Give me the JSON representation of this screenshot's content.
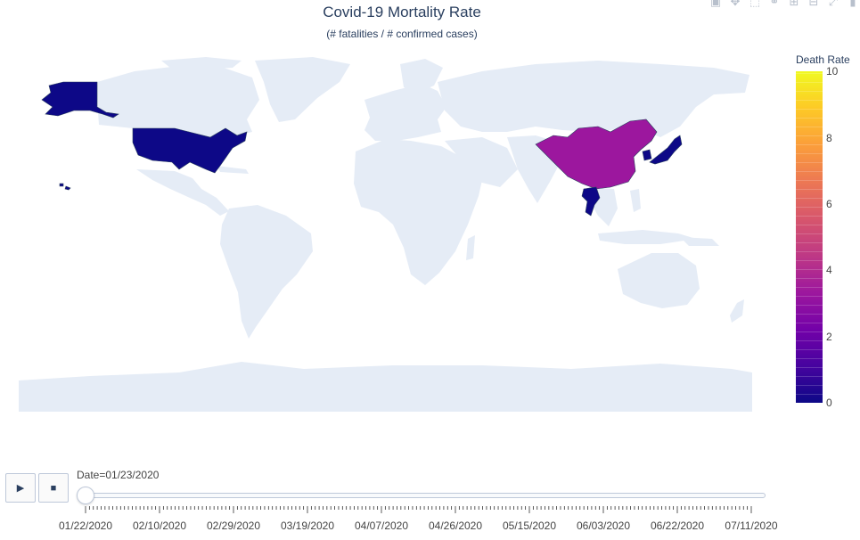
{
  "title": "Covid-19 Mortality Rate",
  "subtitle": "(# fatalities / # confirmed cases)",
  "colorbar": {
    "title": "Death Rate",
    "ticks": [
      "10",
      "8",
      "6",
      "4",
      "2",
      "0"
    ],
    "range": [
      0,
      10
    ],
    "colorscale": "plasma"
  },
  "map": {
    "land_color": "#e5ecf6",
    "highlighted_countries": [
      {
        "name": "United States",
        "death_rate": 0,
        "color": "#0d0887"
      },
      {
        "name": "China",
        "death_rate": 3,
        "color": "#9c179e"
      },
      {
        "name": "Japan",
        "death_rate": 0,
        "color": "#0d0887"
      },
      {
        "name": "Thailand",
        "death_rate": 0,
        "color": "#0d0887"
      },
      {
        "name": "South Korea",
        "death_rate": 0,
        "color": "#0d0887"
      }
    ]
  },
  "animation": {
    "play_icon": "play-icon",
    "stop_icon": "stop-icon",
    "current_value_label": "Date=01/23/2020",
    "current_index": 1
  },
  "slider": {
    "dates": [
      "01/22/2020",
      "02/10/2020",
      "02/29/2020",
      "03/19/2020",
      "04/07/2020",
      "04/26/2020",
      "05/15/2020",
      "06/03/2020",
      "06/22/2020",
      "07/11/2020"
    ]
  },
  "modebar": {
    "icons": [
      "camera-icon",
      "pan-icon",
      "box-select-icon",
      "lasso-icon",
      "zoom-in-icon",
      "zoom-out-icon",
      "reset-icon",
      "hover-icon"
    ]
  }
}
